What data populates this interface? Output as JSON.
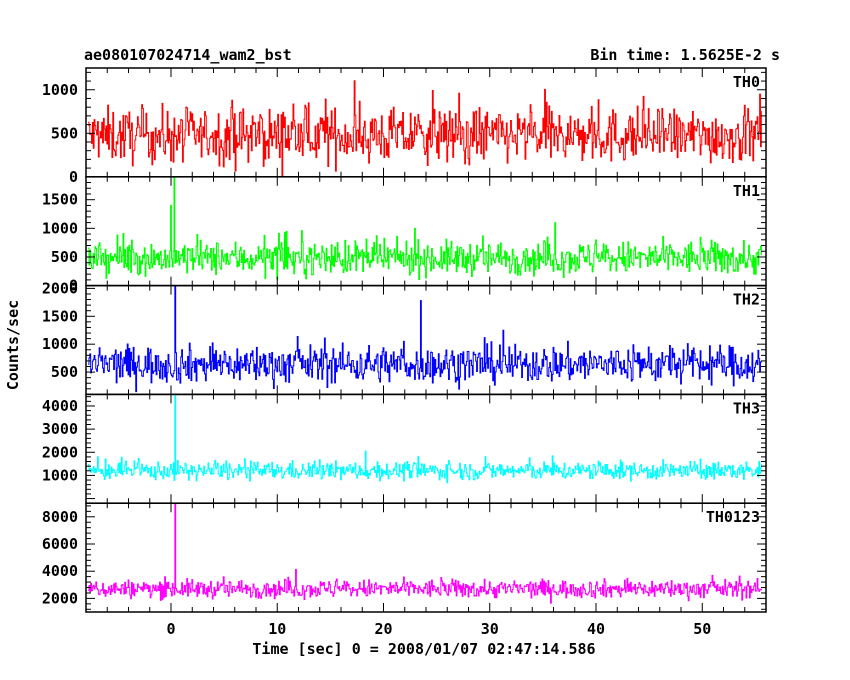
{
  "chart_data": {
    "type": "line",
    "title_left": "ae080107024714_wam2_bst",
    "title_right": "Bin time: 1.5625E-2 s",
    "xlabel": "Time [sec] 0 = 2008/01/07 02:47:14.586",
    "ylabel": "Counts/sec",
    "xlim": [
      -8,
      56
    ],
    "x_ticks": [
      0,
      10,
      20,
      30,
      40,
      50
    ],
    "grid": false,
    "panels": [
      {
        "name": "TH0",
        "color": "#ff0000",
        "ylim": [
          0,
          1250
        ],
        "y_ticks": [
          0,
          500,
          1000
        ],
        "baseline_mean": 470,
        "noise_spread": 280,
        "noise_min": 0,
        "noise_max": 1250,
        "spikes": []
      },
      {
        "name": "TH1",
        "color": "#00ff00",
        "ylim": [
          0,
          1900
        ],
        "y_ticks": [
          0,
          500,
          1000,
          1500
        ],
        "baseline_mean": 480,
        "noise_spread": 260,
        "noise_min": 0,
        "noise_max": 1450,
        "spikes": [
          {
            "x": 0.3,
            "y": 1900
          },
          {
            "x": 0.0,
            "y": 1400
          }
        ]
      },
      {
        "name": "TH2",
        "color": "#0000ff",
        "ylim": [
          100,
          2050
        ],
        "y_ticks": [
          500,
          1000,
          1500,
          2000
        ],
        "baseline_mean": 640,
        "noise_spread": 300,
        "noise_min": 150,
        "noise_max": 1800,
        "spikes": [
          {
            "x": 0.4,
            "y": 2050
          },
          {
            "x": 23.5,
            "y": 1780
          }
        ]
      },
      {
        "name": "TH3",
        "color": "#00ffff",
        "ylim": [
          -200,
          4500
        ],
        "y_ticks": [
          1000,
          2000,
          3000,
          4000
        ],
        "baseline_mean": 1200,
        "noise_spread": 350,
        "noise_min": 200,
        "noise_max": 2400,
        "spikes": [
          {
            "x": 0.4,
            "y": 4500
          }
        ]
      },
      {
        "name": "TH0123",
        "color": "#ff00ff",
        "ylim": [
          1000,
          9000
        ],
        "y_ticks": [
          2000,
          4000,
          6000,
          8000
        ],
        "baseline_mean": 2700,
        "noise_spread": 600,
        "noise_min": 1400,
        "noise_max": 4600,
        "spikes": [
          {
            "x": 0.4,
            "y": 9000
          }
        ]
      }
    ]
  }
}
